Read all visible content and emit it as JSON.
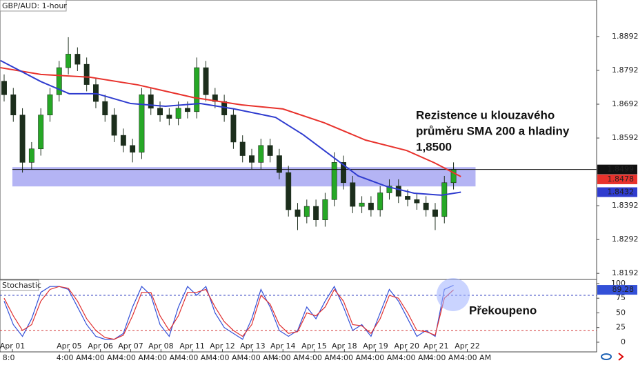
{
  "chart_data": {
    "type": "candlestick",
    "title": "GBP/AUD: 1-hour",
    "xlim": [
      -0.45,
      64.6
    ],
    "ylim": [
      1.8174,
      1.9
    ],
    "yticks": [
      1.8892,
      1.8792,
      1.8692,
      1.8592,
      1.8392,
      1.8292,
      1.8192
    ],
    "xticks": [
      {
        "value": 0.9,
        "label": "Apr 01"
      },
      {
        "value": 7.1,
        "label": "Apr 05"
      },
      {
        "value": 10.5,
        "label": "Apr 06"
      },
      {
        "value": 13.8,
        "label": "Apr 07"
      },
      {
        "value": 17.1,
        "label": "Apr 08"
      },
      {
        "value": 20.5,
        "label": "Apr 11"
      },
      {
        "value": 23.8,
        "label": "Apr 12"
      },
      {
        "value": 27.1,
        "label": "Apr 13"
      },
      {
        "value": 30.4,
        "label": "Apr 14"
      },
      {
        "value": 33.8,
        "label": "Apr 15"
      },
      {
        "value": 37.1,
        "label": "Apr 18"
      },
      {
        "value": 40.5,
        "label": "Apr 19"
      },
      {
        "value": 43.9,
        "label": "Apr 20"
      },
      {
        "value": 47.1,
        "label": "Apr 21"
      },
      {
        "value": 50.5,
        "label": "Apr 22"
      }
    ],
    "time_labels": [
      {
        "value": 0.5,
        "label": "8:0"
      },
      {
        "value": 7.4,
        "label": "4:00 AM"
      },
      {
        "value": 10.8,
        "label": "4:00 AM"
      },
      {
        "value": 14.2,
        "label": "4:00 AM"
      },
      {
        "value": 17.6,
        "label": "4:00 AM"
      },
      {
        "value": 21,
        "label": "4:00 AM"
      },
      {
        "value": 24.4,
        "label": "4:00 AM"
      },
      {
        "value": 27.8,
        "label": "4:00 AM"
      },
      {
        "value": 31.1,
        "label": "4:00 AM"
      },
      {
        "value": 34.5,
        "label": "4:00 AM"
      },
      {
        "value": 37.9,
        "label": "4:00 AM"
      },
      {
        "value": 41.3,
        "label": "4:00 AM"
      },
      {
        "value": 44.7,
        "label": "4:00 AM"
      },
      {
        "value": 48,
        "label": "4:00 AM"
      },
      {
        "value": 51.4,
        "label": "4:00 AM"
      }
    ],
    "up_color": "#26a826",
    "down_color": "#1c2e1c",
    "open": [
      1.876,
      1.872,
      1.866,
      1.852,
      1.856,
      1.866,
      1.872,
      1.88,
      1.884,
      1.881,
      1.875,
      1.87,
      1.866,
      1.86,
      1.857,
      1.855,
      1.872,
      1.868,
      1.866,
      1.865,
      1.868,
      1.867,
      1.88,
      1.872,
      1.87,
      1.866,
      1.858,
      1.854,
      1.852,
      1.857,
      1.854,
      1.849,
      1.838,
      1.836,
      1.839,
      1.835,
      1.841,
      1.852,
      1.846,
      1.839,
      1.84,
      1.838,
      1.843,
      1.845,
      1.842,
      1.841,
      1.84,
      1.838,
      1.836,
      1.846
    ],
    "high": [
      1.878,
      1.874,
      1.868,
      1.858,
      1.868,
      1.874,
      1.882,
      1.889,
      1.886,
      1.883,
      1.877,
      1.872,
      1.868,
      1.862,
      1.859,
      1.874,
      1.874,
      1.87,
      1.868,
      1.87,
      1.87,
      1.883,
      1.882,
      1.874,
      1.872,
      1.868,
      1.86,
      1.856,
      1.859,
      1.859,
      1.856,
      1.851,
      1.84,
      1.841,
      1.841,
      1.843,
      1.855,
      1.854,
      1.848,
      1.842,
      1.842,
      1.845,
      1.847,
      1.847,
      1.844,
      1.843,
      1.842,
      1.84,
      1.848,
      1.852
    ],
    "low": [
      1.87,
      1.864,
      1.849,
      1.85,
      1.854,
      1.864,
      1.87,
      1.878,
      1.879,
      1.873,
      1.868,
      1.864,
      1.858,
      1.855,
      1.852,
      1.853,
      1.866,
      1.864,
      1.863,
      1.863,
      1.865,
      1.865,
      1.87,
      1.868,
      1.864,
      1.856,
      1.852,
      1.85,
      1.85,
      1.852,
      1.847,
      1.836,
      1.832,
      1.834,
      1.833,
      1.833,
      1.839,
      1.844,
      1.837,
      1.837,
      1.836,
      1.836,
      1.841,
      1.84,
      1.839,
      1.838,
      1.836,
      1.832,
      1.834,
      1.844
    ],
    "close": [
      1.872,
      1.866,
      1.852,
      1.856,
      1.866,
      1.872,
      1.88,
      1.884,
      1.881,
      1.875,
      1.87,
      1.866,
      1.86,
      1.857,
      1.855,
      1.872,
      1.868,
      1.866,
      1.865,
      1.868,
      1.867,
      1.88,
      1.872,
      1.87,
      1.866,
      1.858,
      1.854,
      1.852,
      1.857,
      1.854,
      1.849,
      1.838,
      1.836,
      1.839,
      1.835,
      1.841,
      1.852,
      1.846,
      1.839,
      1.84,
      1.838,
      1.843,
      1.845,
      1.842,
      1.841,
      1.84,
      1.838,
      1.836,
      1.846,
      1.8499
    ],
    "series": [
      {
        "color": "#e8322c",
        "x": [
          -0.4,
          4,
          9.3,
          14.6,
          20.6,
          25.9,
          30.4,
          34.9,
          39.4,
          43.9,
          46.9,
          49.8
        ],
        "values": [
          1.88,
          1.878,
          1.8772,
          1.8749,
          1.8712,
          1.869,
          1.8678,
          1.8637,
          1.8586,
          1.8555,
          1.8519,
          1.8478
        ]
      },
      {
        "color": "#2f3ccf",
        "x": [
          -0.4,
          4,
          7.1,
          10.1,
          13.8,
          17.6,
          21.4,
          25.1,
          29.6,
          32.6,
          35.6,
          38.6,
          41.7,
          44.7,
          47.7,
          49.8
        ],
        "values": [
          1.8821,
          1.8759,
          1.8723,
          1.8723,
          1.8694,
          1.8686,
          1.8694,
          1.8678,
          1.8653,
          1.8602,
          1.8541,
          1.848,
          1.8449,
          1.8429,
          1.8423,
          1.8432
        ]
      }
    ],
    "horizontal_line": 1.8499,
    "zone": {
      "x": [
        0.9,
        51.4
      ],
      "y": [
        1.8449,
        1.8506
      ],
      "color": "#a7a7f2"
    },
    "annotation": [
      "Rezistence u klouzavého",
      "průměru SMA 200 a hladiny",
      "1,8500"
    ],
    "stochastic": {
      "title": "Stochastic",
      "ylim": [
        -16.5,
        107
      ],
      "yticks": [
        0,
        25,
        50,
        75,
        100
      ],
      "levels": [
        20,
        80
      ],
      "annotation": "Překoupeno",
      "series": [
        {
          "color": "#3350d8",
          "values": [
            70,
            30,
            10,
            40,
            85,
            95,
            95,
            90,
            60,
            30,
            10,
            5,
            5,
            15,
            60,
            95,
            80,
            30,
            10,
            60,
            95,
            80,
            95,
            50,
            25,
            15,
            5,
            40,
            90,
            60,
            20,
            10,
            20,
            60,
            40,
            70,
            95,
            60,
            20,
            30,
            10,
            50,
            90,
            70,
            40,
            10,
            20,
            10,
            90,
            97
          ]
        },
        {
          "color": "#e03030",
          "values": [
            75,
            45,
            20,
            30,
            70,
            90,
            95,
            92,
            70,
            40,
            20,
            8,
            5,
            12,
            45,
            85,
            85,
            45,
            20,
            45,
            85,
            85,
            90,
            60,
            35,
            20,
            10,
            30,
            80,
            65,
            30,
            15,
            18,
            50,
            45,
            60,
            90,
            70,
            30,
            28,
            15,
            40,
            80,
            75,
            50,
            20,
            18,
            12,
            75,
            89.28
          ]
        }
      ]
    }
  }
}
